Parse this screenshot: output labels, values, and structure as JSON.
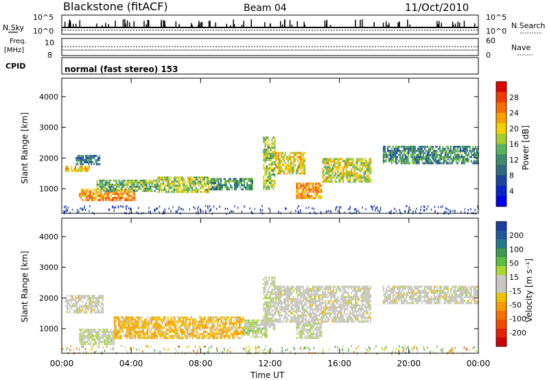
{
  "header": {
    "station": "Blackstone (fitACF)",
    "beam": "Beam 04",
    "date": "11/Oct/2010"
  },
  "panels": {
    "nsky": {
      "label": "N.Sky",
      "right_label": "N.Search",
      "tick_top": "10^5",
      "tick_bottom": "10^0"
    },
    "freq": {
      "label_line1": "Freq.",
      "label_line2": "[MHz]",
      "ticks_left": [
        "10",
        "8"
      ],
      "right_label": "Nave",
      "ticks_right": [
        "60",
        "0"
      ]
    },
    "cpid": {
      "label": "CPID",
      "value": "normal (fast stereo) 153"
    }
  },
  "colorbars": {
    "power": {
      "title": "Power [dB]",
      "ticks": [
        "28",
        "24",
        "20",
        "16",
        "12",
        "8",
        "4"
      ],
      "colors": [
        "#e00000",
        "#f23a00",
        "#f86c00",
        "#f9a000",
        "#f6cf00",
        "#a6cc30",
        "#5ab45a",
        "#3a8e6c",
        "#2e6a82",
        "#1e44a0",
        "#0a22cc",
        "#0000ee"
      ]
    },
    "velocity": {
      "title": "Velocity [m s⁻¹]",
      "ticks": [
        "200",
        "100",
        "50",
        "15",
        "-15",
        "-50",
        "-100",
        "-200"
      ],
      "colors": [
        "#1e3ca0",
        "#1e5aa0",
        "#1e7a8c",
        "#3a9a4a",
        "#58c040",
        "#a6d830",
        "#c8c8c0",
        "#c8c8c0",
        "#f2c000",
        "#f59a00",
        "#f77000",
        "#f44a00",
        "#e82000",
        "#d00000"
      ]
    }
  },
  "axes": {
    "ylabel": "Slant Range [km]",
    "xlabel": "Time UT",
    "yticks": [
      "1000",
      "2000",
      "3000",
      "4000"
    ],
    "xticks": [
      "00:00",
      "04:00",
      "08:00",
      "12:00",
      "16:00",
      "20:00",
      "00:00"
    ]
  },
  "chart_data": [
    {
      "type": "heatmap",
      "name": "power",
      "x_unit": "hours UT",
      "y_unit": "km",
      "xlim": [
        0,
        24
      ],
      "ylim": [
        200,
        4600
      ],
      "xticks": [
        0,
        4,
        8,
        12,
        16,
        20,
        24
      ],
      "yticks": [
        1000,
        2000,
        3000,
        4000
      ],
      "colorbar_range": [
        0,
        30
      ],
      "bands": [
        {
          "t": [
            0.2,
            1.6
          ],
          "r": [
            1550,
            1750
          ],
          "v": 20
        },
        {
          "t": [
            0.8,
            2.2
          ],
          "r": [
            1800,
            2100
          ],
          "v": 9
        },
        {
          "t": [
            1.0,
            4.2
          ],
          "r": [
            650,
            1000
          ],
          "v": 22
        },
        {
          "t": [
            2.0,
            5.5
          ],
          "r": [
            900,
            1300
          ],
          "v": 14
        },
        {
          "t": [
            5.5,
            8.5
          ],
          "r": [
            900,
            1400
          ],
          "v": 16
        },
        {
          "t": [
            8.5,
            11.0
          ],
          "r": [
            1000,
            1350
          ],
          "v": 12
        },
        {
          "t": [
            11.6,
            12.3
          ],
          "r": [
            1000,
            2700
          ],
          "v": 15
        },
        {
          "t": [
            12.3,
            14.0
          ],
          "r": [
            1500,
            2200
          ],
          "v": 18
        },
        {
          "t": [
            13.5,
            15.0
          ],
          "r": [
            700,
            1200
          ],
          "v": 22
        },
        {
          "t": [
            15.0,
            17.8
          ],
          "r": [
            1200,
            2000
          ],
          "v": 17
        },
        {
          "t": [
            18.5,
            24.0
          ],
          "r": [
            1800,
            2400
          ],
          "v": 11
        }
      ]
    },
    {
      "type": "heatmap",
      "name": "velocity",
      "x_unit": "hours UT",
      "y_unit": "km",
      "xlim": [
        0,
        24
      ],
      "ylim": [
        200,
        4600
      ],
      "xticks": [
        0,
        4,
        8,
        12,
        16,
        20,
        24
      ],
      "yticks": [
        1000,
        2000,
        3000,
        4000
      ],
      "colorbar_range": [
        -250,
        250
      ],
      "bands": [
        {
          "t": [
            0.2,
            2.4
          ],
          "r": [
            1500,
            2100
          ],
          "v": 0
        },
        {
          "t": [
            1.0,
            3.0
          ],
          "r": [
            500,
            1000
          ],
          "v": 20
        },
        {
          "t": [
            3.0,
            10.5
          ],
          "r": [
            700,
            1400
          ],
          "v": -60
        },
        {
          "t": [
            10.5,
            11.8
          ],
          "r": [
            700,
            1300
          ],
          "v": 40
        },
        {
          "t": [
            11.6,
            12.3
          ],
          "r": [
            1000,
            2700
          ],
          "v": 10
        },
        {
          "t": [
            12.3,
            17.8
          ],
          "r": [
            1200,
            2400
          ],
          "v": 0
        },
        {
          "t": [
            13.5,
            15.0
          ],
          "r": [
            700,
            1200
          ],
          "v": 20
        },
        {
          "t": [
            18.5,
            24.0
          ],
          "r": [
            1800,
            2400
          ],
          "v": 0
        }
      ]
    }
  ]
}
